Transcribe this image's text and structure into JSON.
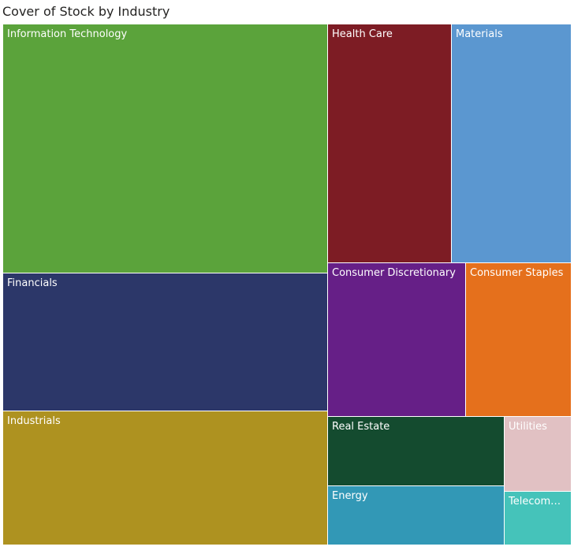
{
  "chart_data": {
    "type": "treemap",
    "title": "Cover of Stock by Industry",
    "categories": [
      "Information Technology",
      "Financials",
      "Industrials",
      "Health Care",
      "Materials",
      "Consumer Discretionary",
      "Consumer Staples",
      "Real Estate",
      "Energy",
      "Utilities",
      "Telecomm..."
    ],
    "values": [
      130,
      72,
      71,
      45,
      45,
      30,
      21,
      20,
      17,
      9,
      6
    ],
    "colors": [
      "#5BA33B",
      "#2C3769",
      "#AE9220",
      "#7D1C24",
      "#5B97D0",
      "#661F87",
      "#E5701C",
      "#144B2F",
      "#3298B6",
      "#E1C1C3",
      "#45C3BA"
    ]
  }
}
